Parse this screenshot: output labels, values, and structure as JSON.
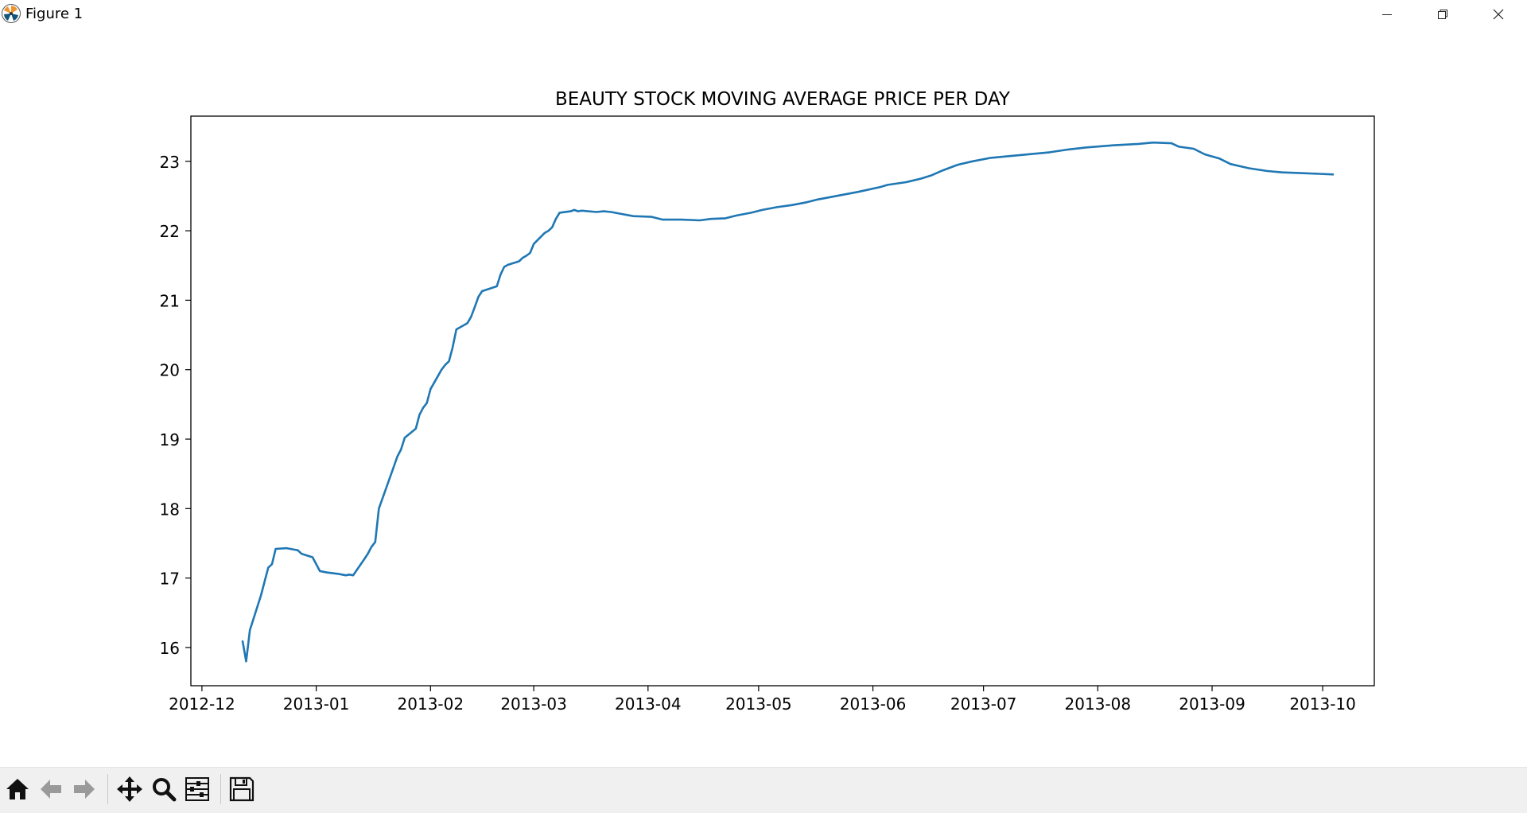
{
  "window": {
    "title": "Figure 1",
    "buttons": [
      "minimize",
      "maximize",
      "close"
    ]
  },
  "toolbar": {
    "buttons": [
      {
        "name": "home-button",
        "icon": "home-icon"
      },
      {
        "name": "back-button",
        "icon": "arrow-left-icon"
      },
      {
        "name": "forward-button",
        "icon": "arrow-right-icon"
      },
      {
        "name": "pan-button",
        "icon": "move-icon"
      },
      {
        "name": "zoom-button",
        "icon": "magnifier-icon"
      },
      {
        "name": "configure-subplots-button",
        "icon": "sliders-icon"
      },
      {
        "name": "save-button",
        "icon": "floppy-disk-icon"
      }
    ]
  },
  "chart_data": {
    "type": "line",
    "title": "BEAUTY STOCK MOVING AVERAGE PRICE PER DAY",
    "xlabel": "",
    "ylabel": "",
    "grid": false,
    "line_color": "#1f77b4",
    "xlim": [
      "2012-11-28",
      "2013-10-15"
    ],
    "ylim": [
      15.45,
      23.65
    ],
    "x_ticks": [
      "2012-12",
      "2013-01",
      "2013-02",
      "2013-03",
      "2013-04",
      "2013-05",
      "2013-06",
      "2013-07",
      "2013-08",
      "2013-09",
      "2013-10"
    ],
    "y_ticks": [
      16,
      17,
      18,
      19,
      20,
      21,
      22,
      23
    ],
    "series": [
      {
        "x": [
          "2012-12-12",
          "2012-12-13",
          "2012-12-14",
          "2012-12-17",
          "2012-12-18",
          "2012-12-19",
          "2012-12-20",
          "2012-12-21",
          "2012-12-24",
          "2012-12-26",
          "2012-12-27",
          "2012-12-28",
          "2012-12-31",
          "2013-01-02",
          "2013-01-03",
          "2013-01-04",
          "2013-01-07",
          "2013-01-08",
          "2013-01-09",
          "2013-01-10",
          "2013-01-11",
          "2013-01-14",
          "2013-01-15",
          "2013-01-16",
          "2013-01-17",
          "2013-01-18",
          "2013-01-22",
          "2013-01-23",
          "2013-01-24",
          "2013-01-25",
          "2013-01-28",
          "2013-01-29",
          "2013-01-30",
          "2013-01-31",
          "2013-02-01",
          "2013-02-04",
          "2013-02-05",
          "2013-02-06",
          "2013-02-07",
          "2013-02-08",
          "2013-02-11",
          "2013-02-12",
          "2013-02-13",
          "2013-02-14",
          "2013-02-15",
          "2013-02-19",
          "2013-02-20",
          "2013-02-21",
          "2013-02-22",
          "2013-02-25",
          "2013-02-26",
          "2013-02-27",
          "2013-02-28",
          "2013-03-01",
          "2013-03-04",
          "2013-03-05",
          "2013-03-06",
          "2013-03-07",
          "2013-03-08",
          "2013-03-11",
          "2013-03-12",
          "2013-03-13",
          "2013-03-14",
          "2013-03-18",
          "2013-03-20",
          "2013-03-22",
          "2013-03-25",
          "2013-03-28",
          "2013-04-02",
          "2013-04-05",
          "2013-04-10",
          "2013-04-15",
          "2013-04-18",
          "2013-04-22",
          "2013-04-25",
          "2013-04-29",
          "2013-05-02",
          "2013-05-06",
          "2013-05-10",
          "2013-05-14",
          "2013-05-17",
          "2013-05-21",
          "2013-05-24",
          "2013-05-28",
          "2013-06-03",
          "2013-06-05",
          "2013-06-10",
          "2013-06-14",
          "2013-06-17",
          "2013-06-20",
          "2013-06-24",
          "2013-06-28",
          "2013-07-03",
          "2013-07-09",
          "2013-07-15",
          "2013-07-19",
          "2013-07-24",
          "2013-07-29",
          "2013-08-05",
          "2013-08-12",
          "2013-08-16",
          "2013-08-21",
          "2013-08-23",
          "2013-08-27",
          "2013-08-30",
          "2013-09-03",
          "2013-09-06",
          "2013-09-11",
          "2013-09-16",
          "2013-09-20",
          "2013-09-25",
          "2013-09-30",
          "2013-10-04"
        ],
        "y": [
          16.1,
          15.8,
          16.25,
          16.75,
          16.95,
          17.15,
          17.2,
          17.42,
          17.43,
          17.41,
          17.4,
          17.35,
          17.3,
          17.1,
          17.09,
          17.08,
          17.06,
          17.05,
          17.04,
          17.05,
          17.04,
          17.27,
          17.35,
          17.45,
          17.52,
          18.0,
          18.6,
          18.75,
          18.85,
          19.02,
          19.15,
          19.35,
          19.45,
          19.52,
          19.72,
          20.0,
          20.07,
          20.12,
          20.32,
          20.58,
          20.67,
          20.76,
          20.9,
          21.05,
          21.13,
          21.2,
          21.37,
          21.48,
          21.51,
          21.56,
          21.61,
          21.64,
          21.68,
          21.81,
          21.97,
          22.0,
          22.05,
          22.17,
          22.26,
          22.28,
          22.3,
          22.28,
          22.29,
          22.27,
          22.28,
          22.27,
          22.24,
          22.21,
          22.2,
          22.16,
          22.16,
          22.15,
          22.17,
          22.18,
          22.22,
          22.26,
          22.3,
          22.34,
          22.37,
          22.41,
          22.45,
          22.49,
          22.52,
          22.56,
          22.63,
          22.66,
          22.7,
          22.75,
          22.8,
          22.87,
          22.95,
          23.0,
          23.05,
          23.08,
          23.11,
          23.13,
          23.17,
          23.2,
          23.23,
          23.25,
          23.27,
          23.26,
          23.21,
          23.18,
          23.1,
          23.04,
          22.96,
          22.9,
          22.86,
          22.84,
          22.83,
          22.82,
          22.81
        ]
      }
    ]
  }
}
